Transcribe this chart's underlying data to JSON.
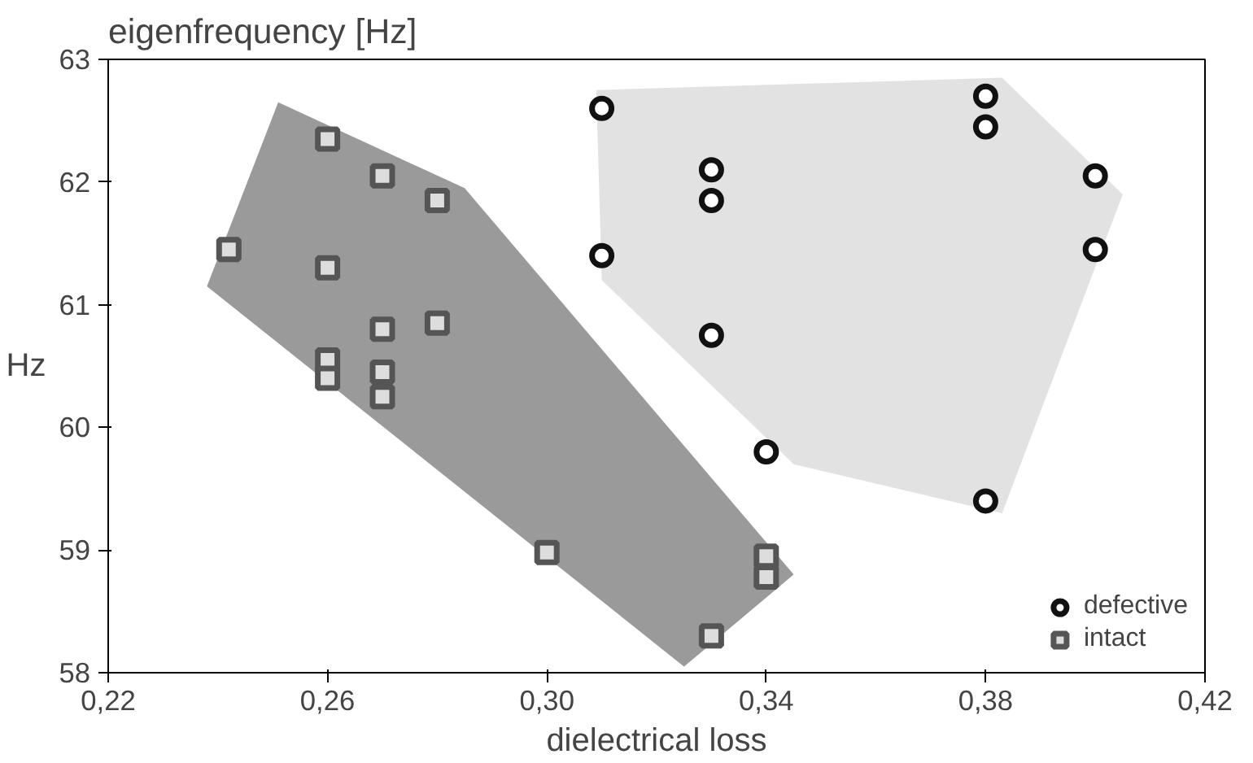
{
  "chart_data": {
    "type": "scatter",
    "title": "eigenfrequency [Hz]",
    "xlabel": "dielectrical loss",
    "ylabel": "Hz",
    "xlim": [
      0.22,
      0.42
    ],
    "ylim": [
      58,
      63
    ],
    "xticks": [
      {
        "value": 0.22,
        "label": "0,22"
      },
      {
        "value": 0.26,
        "label": "0,26"
      },
      {
        "value": 0.3,
        "label": "0,30"
      },
      {
        "value": 0.34,
        "label": "0,34"
      },
      {
        "value": 0.38,
        "label": "0,38"
      },
      {
        "value": 0.42,
        "label": "0,42"
      }
    ],
    "yticks": [
      58,
      59,
      60,
      61,
      62,
      63
    ],
    "grid": false,
    "legend": "bottom right",
    "series": [
      {
        "type": "area",
        "color": "#9a9a9a",
        "x": [
          0.238,
          0.251,
          0.285,
          0.345,
          0.325
        ],
        "values": [
          61.15,
          62.65,
          61.95,
          58.8,
          58.05
        ]
      },
      {
        "type": "area",
        "color": "#e2e2e2",
        "x": [
          0.309,
          0.383,
          0.405,
          0.383,
          0.345,
          0.31
        ],
        "values": [
          62.75,
          62.85,
          61.9,
          59.3,
          59.7,
          61.2
        ]
      },
      {
        "name": "defective",
        "marker": "circle",
        "color": "#111111",
        "x": [
          0.31,
          0.31,
          0.33,
          0.33,
          0.33,
          0.34,
          0.38,
          0.38,
          0.38,
          0.4,
          0.4
        ],
        "values": [
          62.6,
          61.4,
          62.1,
          61.85,
          60.75,
          59.8,
          62.7,
          62.45,
          59.4,
          62.05,
          61.45
        ]
      },
      {
        "name": "intact",
        "marker": "square",
        "color": "#555555",
        "x": [
          0.242,
          0.26,
          0.26,
          0.26,
          0.26,
          0.27,
          0.28,
          0.27,
          0.27,
          0.27,
          0.28,
          0.3,
          0.34,
          0.34,
          0.33
        ],
        "values": [
          61.45,
          62.35,
          61.3,
          60.55,
          60.4,
          62.05,
          61.85,
          60.8,
          60.45,
          60.25,
          60.85,
          58.98,
          58.95,
          58.78,
          58.3
        ]
      }
    ]
  }
}
